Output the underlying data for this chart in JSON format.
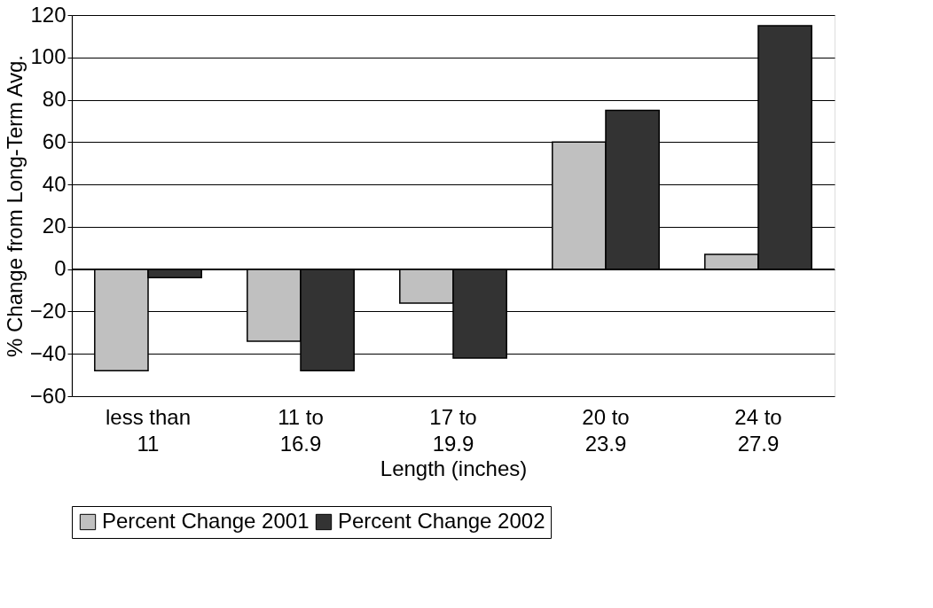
{
  "chart_data": {
    "type": "bar",
    "xlabel": "Length (inches)",
    "ylabel": "% Change from Long-Term Avg.",
    "categories": [
      "less than 11",
      "11 to 16.9",
      "17 to 19.9",
      "20 to 23.9",
      "24 to 27.9"
    ],
    "series": [
      {
        "name": "Percent Change 2001",
        "color": "#c0c0c0",
        "values": [
          -48,
          -34,
          -16,
          60,
          7
        ]
      },
      {
        "name": "Percent Change 2002",
        "color": "#333333",
        "values": [
          -4,
          -48,
          -42,
          75,
          115
        ]
      }
    ],
    "ylim": [
      -60,
      120
    ],
    "yticks": [
      -60,
      -40,
      -20,
      0,
      20,
      40,
      60,
      80,
      100,
      120
    ],
    "grid": "y",
    "legend": "bottom"
  }
}
